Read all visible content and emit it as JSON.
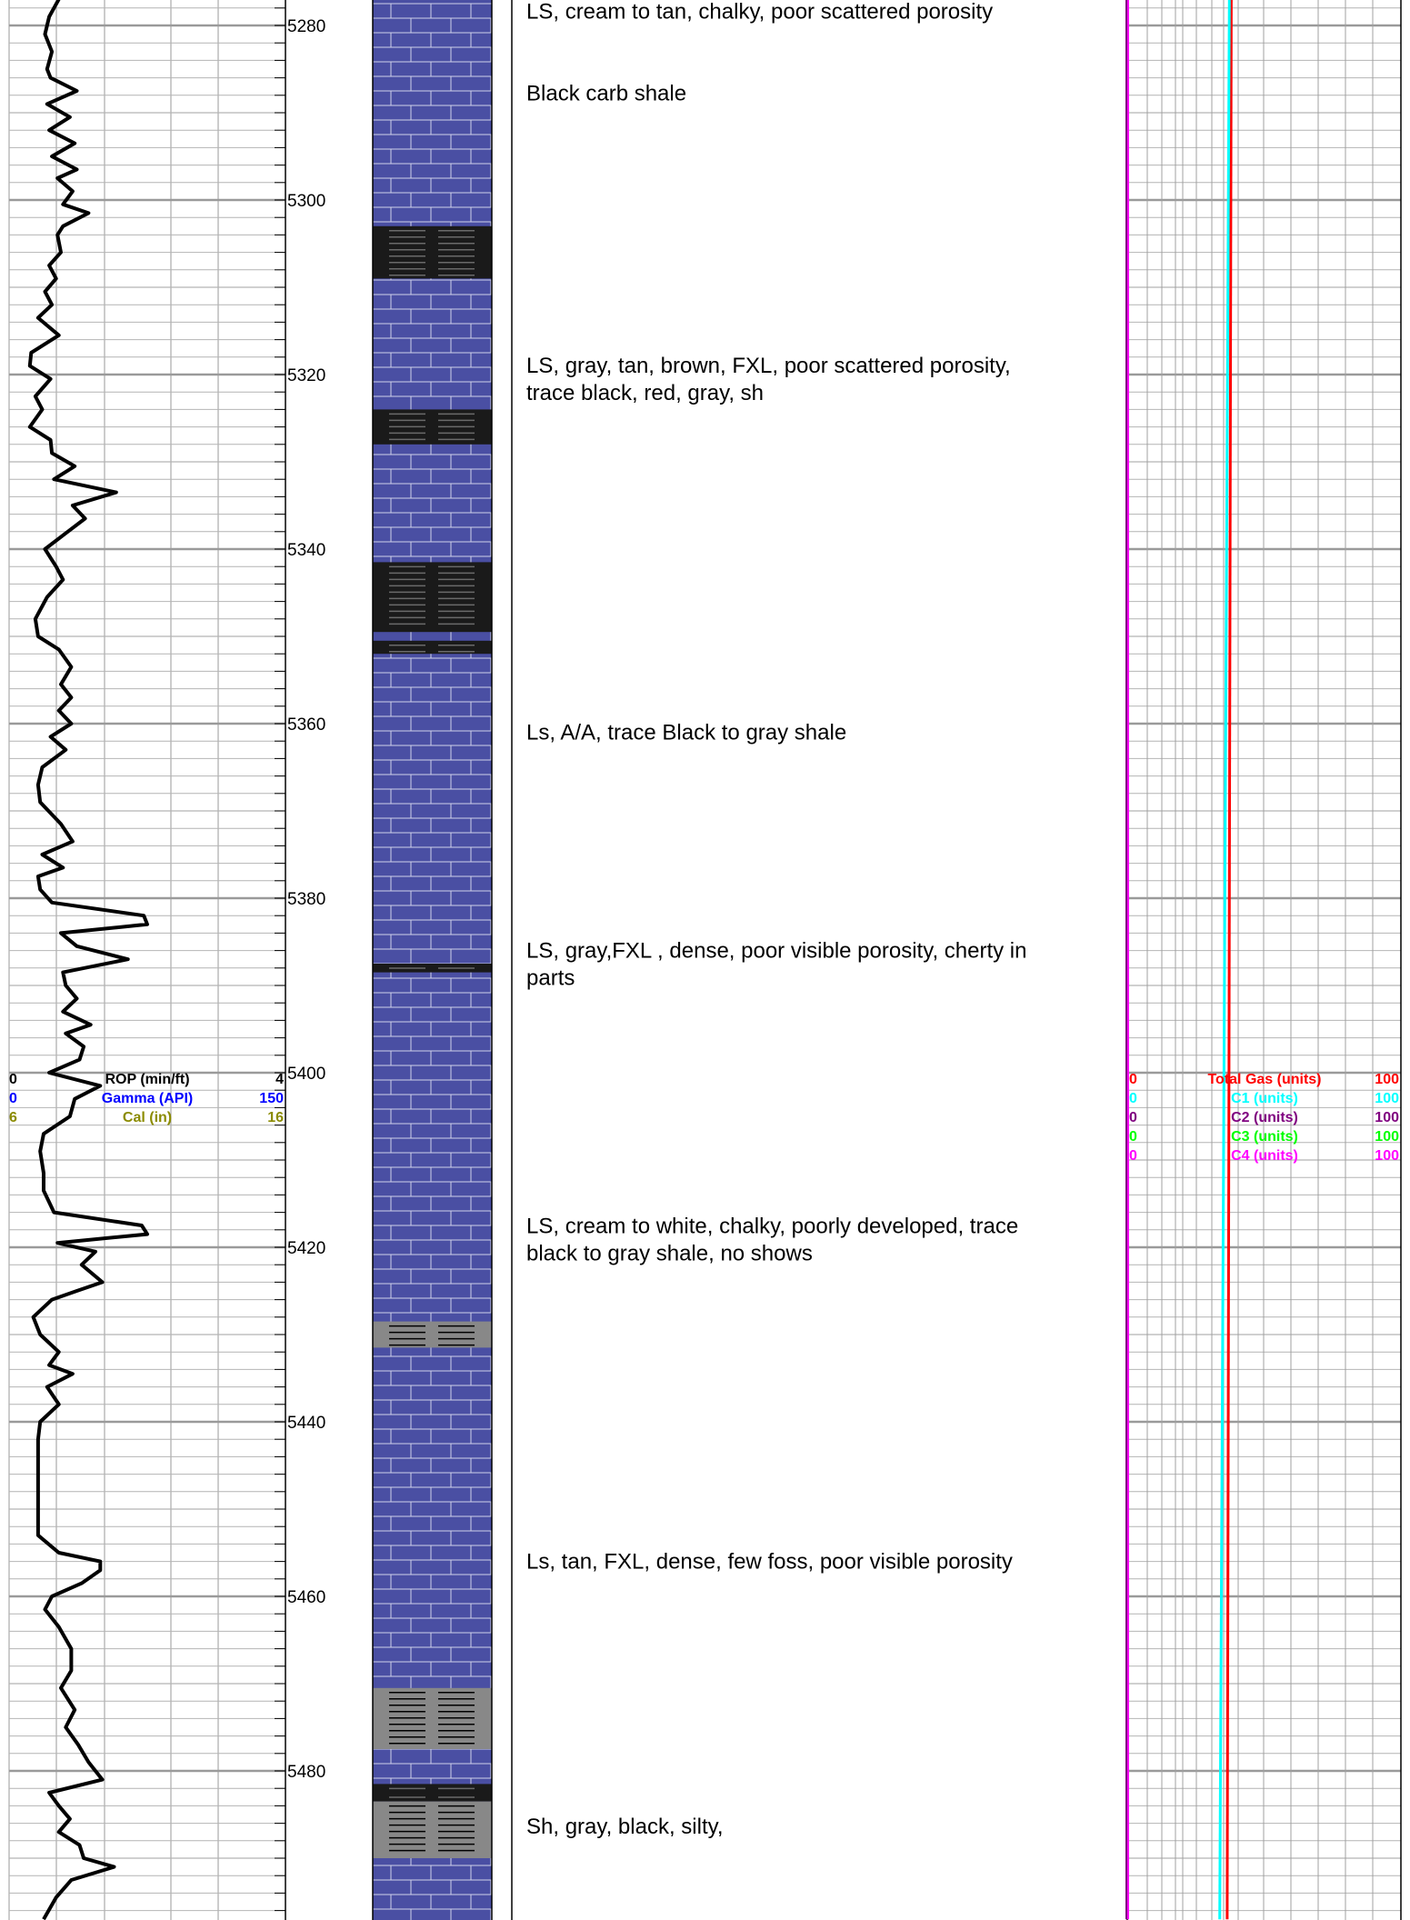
{
  "chart_data": {
    "type": "line",
    "depth_range": [
      5277,
      5497
    ],
    "depth_ticks": [
      5280,
      5300,
      5320,
      5340,
      5360,
      5380,
      5400,
      5420,
      5440,
      5460,
      5480
    ],
    "left_track": {
      "curves": [
        {
          "name": "ROP (min/ft)",
          "min": "0",
          "max": "4",
          "color": "#000000"
        },
        {
          "name": "Gamma (API)",
          "min": "0",
          "max": "150",
          "color": "#0000ff"
        },
        {
          "name": "Cal (in)",
          "min": "6",
          "max": "16",
          "color": "#8b8b00"
        }
      ],
      "rop_profile": [
        [
          5277,
          0.72
        ],
        [
          5279,
          0.58
        ],
        [
          5281,
          0.52
        ],
        [
          5283,
          0.62
        ],
        [
          5285,
          0.55
        ],
        [
          5286,
          0.6
        ],
        [
          5287.5,
          0.98
        ],
        [
          5289,
          0.55
        ],
        [
          5290.5,
          0.88
        ],
        [
          5292,
          0.58
        ],
        [
          5293.5,
          0.95
        ],
        [
          5295,
          0.62
        ],
        [
          5296.5,
          0.98
        ],
        [
          5297.5,
          0.7
        ],
        [
          5299,
          0.92
        ],
        [
          5300.5,
          0.78
        ],
        [
          5301.5,
          1.15
        ],
        [
          5303,
          0.78
        ],
        [
          5304,
          0.7
        ],
        [
          5306,
          0.75
        ],
        [
          5307.5,
          0.58
        ],
        [
          5309,
          0.68
        ],
        [
          5310.5,
          0.52
        ],
        [
          5312,
          0.62
        ],
        [
          5313.5,
          0.42
        ],
        [
          5315.5,
          0.72
        ],
        [
          5317.5,
          0.32
        ],
        [
          5319,
          0.3
        ],
        [
          5320.5,
          0.6
        ],
        [
          5322.5,
          0.38
        ],
        [
          5324,
          0.48
        ],
        [
          5326,
          0.3
        ],
        [
          5327.5,
          0.6
        ],
        [
          5329,
          0.62
        ],
        [
          5330.5,
          0.95
        ],
        [
          5332,
          0.65
        ],
        [
          5333.5,
          1.55
        ],
        [
          5335,
          0.92
        ],
        [
          5336.5,
          1.1
        ],
        [
          5338,
          0.85
        ],
        [
          5340,
          0.52
        ],
        [
          5342,
          0.68
        ],
        [
          5343.5,
          0.78
        ],
        [
          5345.5,
          0.55
        ],
        [
          5348,
          0.38
        ],
        [
          5350,
          0.42
        ],
        [
          5351.5,
          0.72
        ],
        [
          5353.5,
          0.9
        ],
        [
          5355.5,
          0.75
        ],
        [
          5357,
          0.9
        ],
        [
          5358.5,
          0.72
        ],
        [
          5360,
          0.9
        ],
        [
          5361.5,
          0.6
        ],
        [
          5363,
          0.82
        ],
        [
          5365,
          0.48
        ],
        [
          5367,
          0.42
        ],
        [
          5369,
          0.45
        ],
        [
          5371.5,
          0.75
        ],
        [
          5373.5,
          0.92
        ],
        [
          5375,
          0.48
        ],
        [
          5376.5,
          0.78
        ],
        [
          5377.5,
          0.42
        ],
        [
          5379,
          0.45
        ],
        [
          5380.5,
          0.62
        ],
        [
          5382,
          1.95
        ],
        [
          5383,
          2.0
        ],
        [
          5384,
          0.75
        ],
        [
          5385.5,
          0.98
        ],
        [
          5387,
          1.72
        ],
        [
          5388.5,
          0.78
        ],
        [
          5390,
          0.82
        ],
        [
          5391.5,
          0.98
        ],
        [
          5393,
          0.78
        ],
        [
          5394.5,
          1.18
        ],
        [
          5395.5,
          0.82
        ],
        [
          5397,
          1.08
        ],
        [
          5398.5,
          1.02
        ],
        [
          5400,
          0.58
        ],
        [
          5401.5,
          1.32
        ],
        [
          5403,
          0.95
        ],
        [
          5405,
          0.88
        ],
        [
          5407,
          0.5
        ],
        [
          5409,
          0.45
        ],
        [
          5411.5,
          0.5
        ],
        [
          5413.5,
          0.5
        ],
        [
          5416,
          0.65
        ],
        [
          5417.5,
          1.92
        ],
        [
          5418.5,
          2.0
        ],
        [
          5419.5,
          0.7
        ],
        [
          5420.5,
          1.25
        ],
        [
          5422,
          1.05
        ],
        [
          5424,
          1.35
        ],
        [
          5425,
          0.98
        ],
        [
          5426,
          0.62
        ],
        [
          5428,
          0.35
        ],
        [
          5430,
          0.45
        ],
        [
          5432,
          0.72
        ],
        [
          5433.5,
          0.58
        ],
        [
          5434.5,
          0.92
        ],
        [
          5436,
          0.55
        ],
        [
          5438,
          0.72
        ],
        [
          5440,
          0.45
        ],
        [
          5442,
          0.42
        ],
        [
          5446,
          0.42
        ],
        [
          5450,
          0.42
        ],
        [
          5453,
          0.42
        ],
        [
          5455,
          0.72
        ],
        [
          5456,
          1.32
        ],
        [
          5457,
          1.32
        ],
        [
          5458.5,
          1.05
        ],
        [
          5460,
          0.62
        ],
        [
          5461.5,
          0.52
        ],
        [
          5463.5,
          0.72
        ],
        [
          5466,
          0.9
        ],
        [
          5468.5,
          0.9
        ],
        [
          5470.5,
          0.75
        ],
        [
          5473,
          0.95
        ],
        [
          5475,
          0.82
        ],
        [
          5477,
          1.0
        ],
        [
          5479,
          1.15
        ],
        [
          5481,
          1.35
        ],
        [
          5482.5,
          0.58
        ],
        [
          5484,
          0.72
        ],
        [
          5485.5,
          0.88
        ],
        [
          5487,
          0.72
        ],
        [
          5488.5,
          1.02
        ],
        [
          5490,
          1.08
        ],
        [
          5491,
          1.52
        ],
        [
          5492.5,
          0.9
        ],
        [
          5494.5,
          0.68
        ],
        [
          5497,
          0.5
        ]
      ]
    },
    "lithology_column": {
      "base": "limestone",
      "base_color": "#4a4fa3",
      "shale_streaks": [
        {
          "top": 5303,
          "bottom": 5309,
          "color": "#1a1a1a"
        },
        {
          "top": 5324,
          "bottom": 5328,
          "color": "#1a1a1a"
        },
        {
          "top": 5341.5,
          "bottom": 5349.5,
          "color": "#1a1a1a"
        },
        {
          "top": 5350.5,
          "bottom": 5352,
          "color": "#1a1a1a"
        },
        {
          "top": 5387.5,
          "bottom": 5388.5,
          "color": "#1a1a1a"
        },
        {
          "top": 5428.5,
          "bottom": 5431.5,
          "color": "#888888"
        },
        {
          "top": 5470.5,
          "bottom": 5477.5,
          "color": "#888888"
        },
        {
          "top": 5481.5,
          "bottom": 5482.5,
          "color": "#1a1a1a"
        },
        {
          "top": 5482.5,
          "bottom": 5483.5,
          "color": "#1a1a1a"
        },
        {
          "top": 5483.5,
          "bottom": 5490,
          "color": "#888888"
        }
      ]
    },
    "descriptions": [
      {
        "depth": 5279.2,
        "lines": [
          "LS, cream to tan, chalky, poor scattered porosity"
        ]
      },
      {
        "depth": 5288.6,
        "lines": [
          "Black carb shale"
        ]
      },
      {
        "depth": 5319.8,
        "lines": [
          "LS, gray, tan, brown, FXL, poor scattered porosity,",
          "trace black, red, gray, sh"
        ]
      },
      {
        "depth": 5361.8,
        "lines": [
          "Ls, A/A, trace  Black to gray shale"
        ]
      },
      {
        "depth": 5386.8,
        "lines": [
          "LS, gray,FXL , dense, poor visible porosity, cherty in",
          "parts"
        ]
      },
      {
        "depth": 5418.4,
        "lines": [
          "LS, cream to white, chalky, poorly developed, trace",
          "black to gray shale, no shows"
        ]
      },
      {
        "depth": 5456.8,
        "lines": [
          "Ls, tan, FXL, dense, few foss, poor visible porosity"
        ]
      },
      {
        "depth": 5487.2,
        "lines": [
          "Sh, gray, black, silty,"
        ]
      }
    ],
    "gas_track": {
      "curves": [
        {
          "name": "Total Gas (units)",
          "min": "0",
          "max": "100",
          "color": "#ff0000"
        },
        {
          "name": "C1 (units)",
          "min": "0",
          "max": "100",
          "color": "#00ffff"
        },
        {
          "name": "C2 (units)",
          "min": "0",
          "max": "100",
          "color": "#800080"
        },
        {
          "name": "C3 (units)",
          "min": "0",
          "max": "100",
          "color": "#00ff00"
        },
        {
          "name": "C4 (units)",
          "min": "0",
          "max": "100",
          "color": "#ff00ff"
        }
      ],
      "total_gas_profile": [
        [
          5277,
          38
        ],
        [
          5497,
          36.5
        ]
      ],
      "c1_profile": [
        [
          5277,
          37.3
        ],
        [
          5497,
          33.8
        ]
      ],
      "c2_profile": [
        [
          5277,
          0
        ],
        [
          5497,
          0
        ]
      ],
      "c4_profile": [
        [
          5277,
          0
        ],
        [
          5497,
          0
        ]
      ]
    },
    "grid": true
  }
}
